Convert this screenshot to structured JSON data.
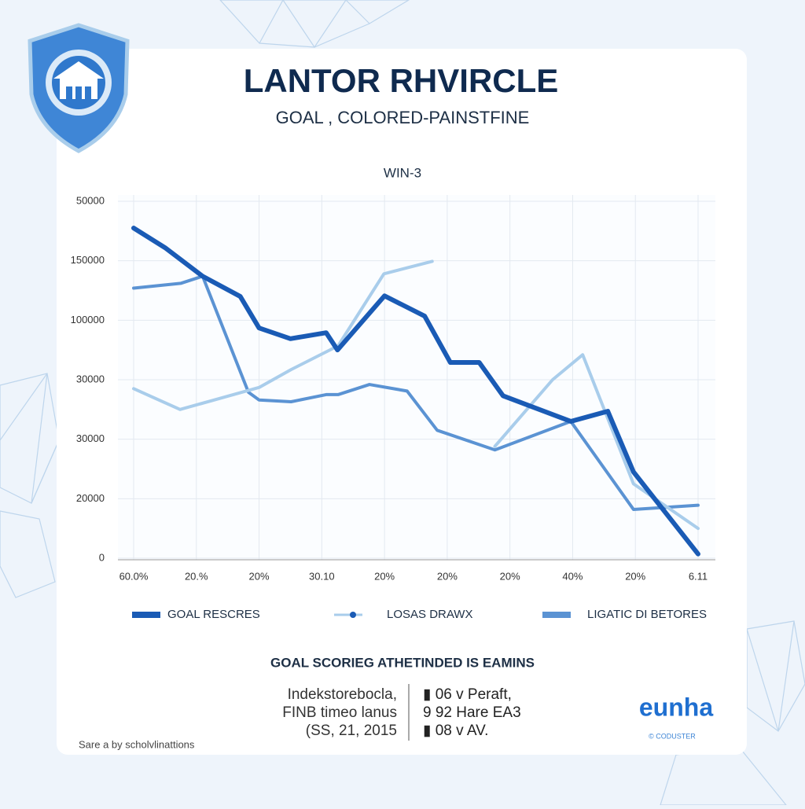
{
  "chart_data": {
    "type": "line",
    "title": "LANTOR RHVIRCLE",
    "subtitle": "GOAL , COLORED-PAINSTFINE",
    "chart_title": "WIN-3",
    "xlim": [
      0,
      9
    ],
    "xticks": [
      {
        "value": 0,
        "label": "60.0%"
      },
      {
        "value": 1,
        "label": "20.%"
      },
      {
        "value": 2,
        "label": "20%"
      },
      {
        "value": 3,
        "label": "30.10"
      },
      {
        "value": 4,
        "label": "20%"
      },
      {
        "value": 5,
        "label": "20%"
      },
      {
        "value": 6,
        "label": "20%"
      },
      {
        "value": 7,
        "label": "40%"
      },
      {
        "value": 8,
        "label": "20%"
      },
      {
        "value": 9,
        "label": "6.11"
      }
    ],
    "ylim": [
      0,
      6
    ],
    "yticks": [
      0,
      {
        "value": 1,
        "label": "20000"
      },
      {
        "value": 2,
        "label": "30000"
      },
      {
        "value": 3,
        "label": "30000"
      },
      {
        "value": 4,
        "label": "100000"
      },
      {
        "value": 5,
        "label": "150000"
      },
      {
        "value": 6,
        "label": "50000"
      }
    ],
    "grid": true,
    "series": [
      {
        "name": "GOAL RESCRES",
        "color": "#1a5bb5",
        "x": [
          0,
          0.5,
          1.1,
          1.7,
          2.0,
          2.5,
          3.07,
          3.25,
          4.0,
          4.64,
          5.05,
          5.51,
          5.89,
          6.97,
          7.56,
          7.97,
          9.0
        ],
        "values": [
          5.55,
          5.22,
          4.74,
          4.4,
          3.87,
          3.69,
          3.79,
          3.5,
          4.41,
          4.07,
          3.29,
          3.29,
          2.73,
          2.3,
          2.47,
          1.45,
          0.07
        ]
      },
      {
        "name": "LOSAS DRAWX",
        "color": "#a9cdeb",
        "x": [
          0,
          0.74,
          2.0,
          2.51,
          3.26,
          3.99,
          4.76,
          null,
          5.76,
          6.68,
          7.16,
          7.97,
          9.0
        ],
        "values": [
          2.85,
          2.5,
          2.87,
          3.17,
          3.57,
          4.78,
          4.99,
          null,
          1.88,
          3.0,
          3.42,
          1.25,
          0.5
        ]
      },
      {
        "name": "LIGATIC DI BETORES",
        "color": "#5b93d3",
        "x": [
          0,
          0.75,
          1.1,
          1.83,
          2.0,
          2.51,
          3.07,
          3.26,
          3.76,
          4.36,
          4.84,
          5.76,
          6.97,
          7.97,
          9.0
        ],
        "values": [
          4.54,
          4.62,
          4.74,
          2.79,
          2.66,
          2.63,
          2.75,
          2.75,
          2.92,
          2.81,
          2.15,
          1.82,
          2.3,
          0.82,
          0.89
        ]
      }
    ]
  },
  "footer": {
    "heading": "GOAL SCORIEG ATHETINDED IS EAMINS",
    "left": [
      "Indekstorebocla,",
      "FINB timeo lanus",
      "(SS, 21, 2015"
    ],
    "right": [
      "▮ 06 v Peraft,",
      "9 92 Hare EA3",
      "▮ 08 v AV."
    ],
    "logo": "eunha",
    "logo_sub": "© CODUSTER",
    "source": "Sare a by scholvlinattions"
  }
}
